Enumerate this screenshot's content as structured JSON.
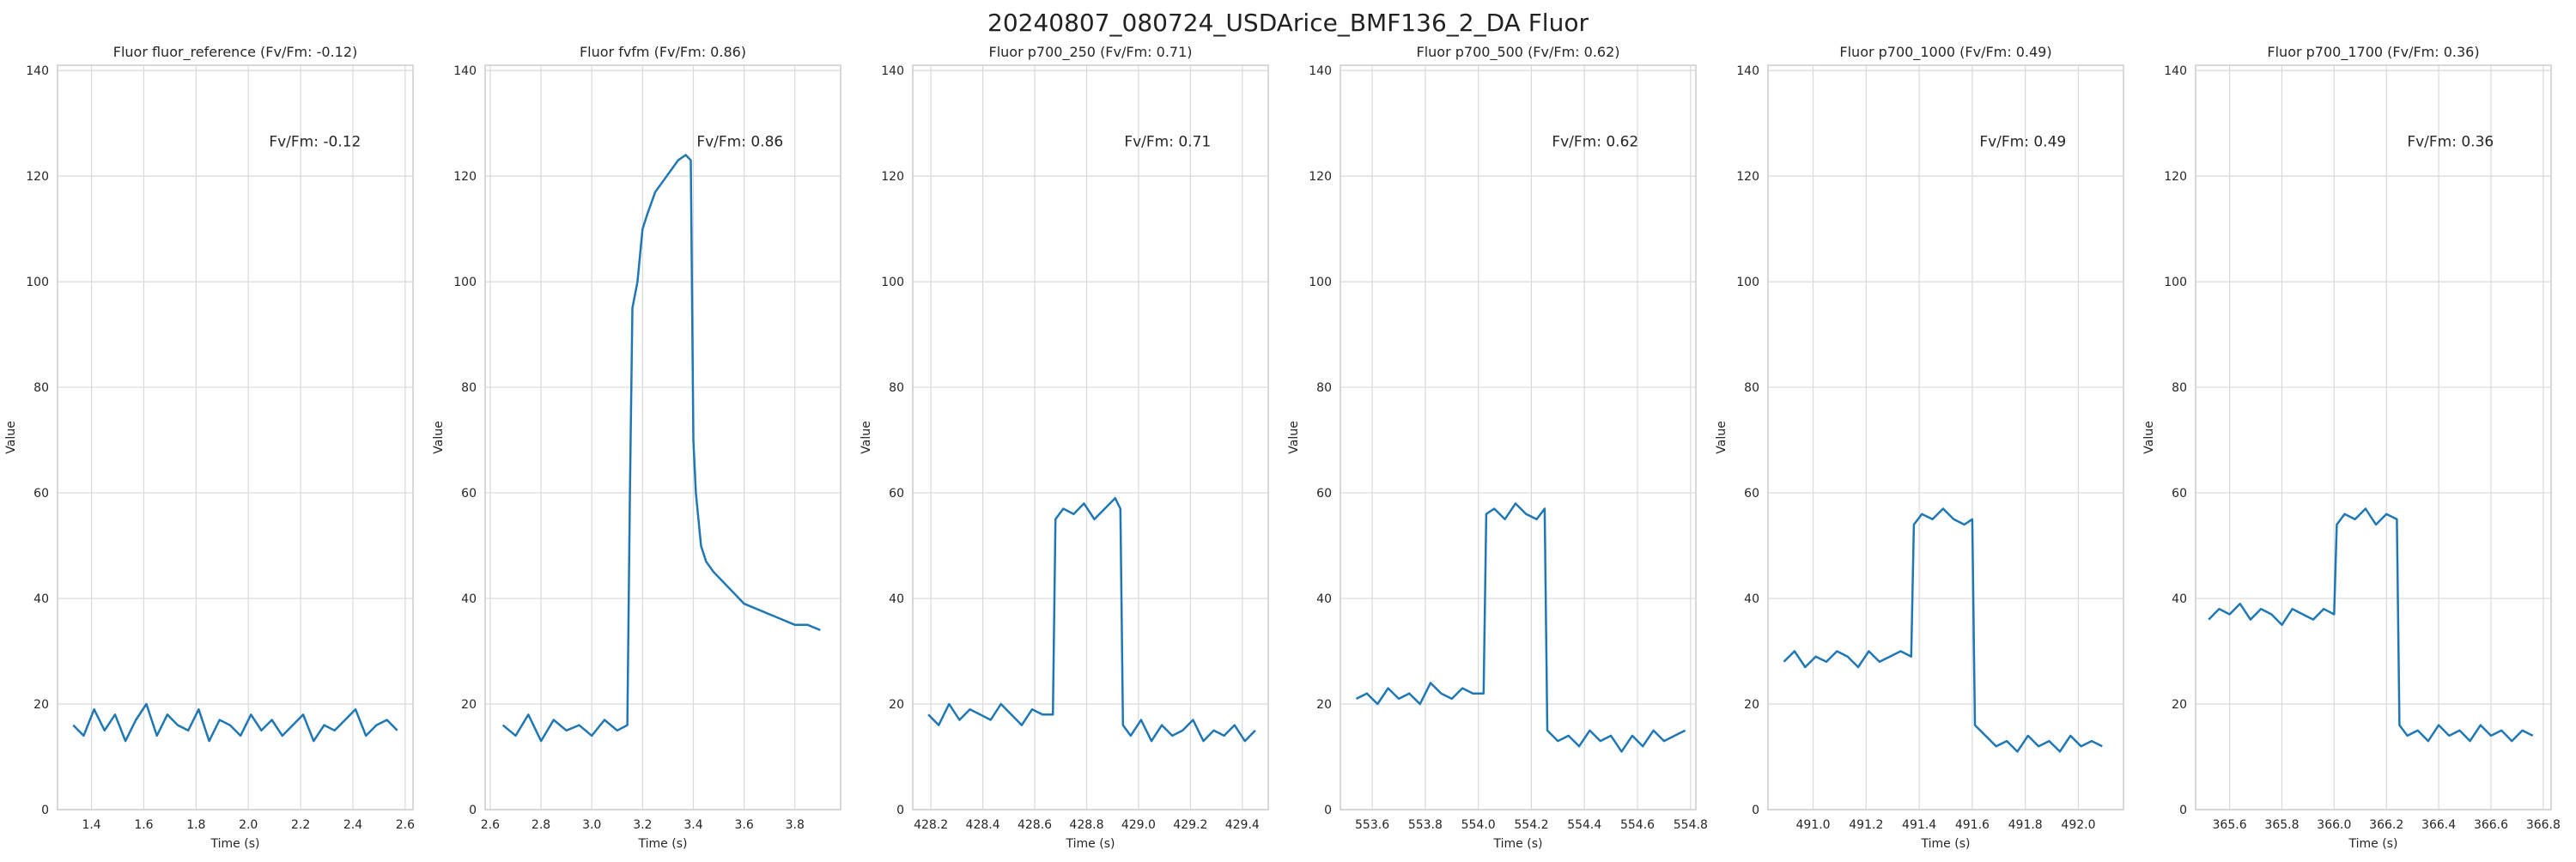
{
  "figure": {
    "title": "20240807_080724_USDArice_BMF136_2_DA Fluor"
  },
  "colors": {
    "line": "#1f77b4",
    "grid": "#d9d9d9",
    "axis": "#cccccc",
    "text": "#262626"
  },
  "chart_data": [
    {
      "type": "line",
      "title": "Fluor fluor_reference (Fv/Fm: -0.12)",
      "annotation": "Fv/Fm: -0.12",
      "xlabel": "Time (s)",
      "ylabel": "Value",
      "xlim": [
        1.27,
        2.63
      ],
      "ylim": [
        0,
        141
      ],
      "xticks": [
        1.4,
        1.6,
        1.8,
        2.0,
        2.2,
        2.4,
        2.6
      ],
      "xtick_labels": [
        "1.4",
        "1.6",
        "1.8",
        "2.0",
        "2.2",
        "2.4",
        "2.6"
      ],
      "yticks": [
        0,
        20,
        40,
        60,
        80,
        100,
        120,
        140
      ],
      "grid": true,
      "x": [
        1.33,
        1.37,
        1.41,
        1.45,
        1.49,
        1.53,
        1.57,
        1.61,
        1.65,
        1.69,
        1.73,
        1.77,
        1.81,
        1.85,
        1.89,
        1.93,
        1.97,
        2.01,
        2.05,
        2.09,
        2.13,
        2.17,
        2.21,
        2.25,
        2.29,
        2.33,
        2.37,
        2.41,
        2.45,
        2.49,
        2.53,
        2.57
      ],
      "y": [
        16,
        14,
        19,
        15,
        18,
        13,
        17,
        20,
        14,
        18,
        16,
        15,
        19,
        13,
        17,
        16,
        14,
        18,
        15,
        17,
        14,
        16,
        18,
        13,
        16,
        15,
        17,
        19,
        14,
        16,
        17,
        15
      ]
    },
    {
      "type": "line",
      "title": "Fluor fvfm (Fv/Fm: 0.86)",
      "annotation": "Fv/Fm: 0.86",
      "xlabel": "Time (s)",
      "ylabel": "Value",
      "xlim": [
        2.58,
        3.98
      ],
      "ylim": [
        0,
        141
      ],
      "xticks": [
        2.6,
        2.8,
        3.0,
        3.2,
        3.4,
        3.6,
        3.8
      ],
      "xtick_labels": [
        "2.6",
        "2.8",
        "3.0",
        "3.2",
        "3.4",
        "3.6",
        "3.8"
      ],
      "yticks": [
        0,
        20,
        40,
        60,
        80,
        100,
        120,
        140
      ],
      "grid": true,
      "x": [
        2.65,
        2.7,
        2.75,
        2.8,
        2.85,
        2.9,
        2.95,
        3.0,
        3.05,
        3.1,
        3.14,
        3.15,
        3.16,
        3.18,
        3.2,
        3.22,
        3.25,
        3.28,
        3.31,
        3.34,
        3.37,
        3.39,
        3.4,
        3.41,
        3.42,
        3.43,
        3.45,
        3.48,
        3.52,
        3.56,
        3.6,
        3.65,
        3.7,
        3.75,
        3.8,
        3.85,
        3.9
      ],
      "y": [
        16,
        14,
        18,
        13,
        17,
        15,
        16,
        14,
        17,
        15,
        16,
        60,
        95,
        100,
        110,
        113,
        117,
        119,
        121,
        123,
        124,
        123,
        70,
        60,
        55,
        50,
        47,
        45,
        43,
        41,
        39,
        38,
        37,
        36,
        35,
        35,
        34
      ]
    },
    {
      "type": "line",
      "title": "Fluor p700_250 (Fv/Fm: 0.71)",
      "annotation": "Fv/Fm: 0.71",
      "xlabel": "Time (s)",
      "ylabel": "Value",
      "xlim": [
        428.13,
        429.5
      ],
      "ylim": [
        0,
        141
      ],
      "xticks": [
        428.2,
        428.4,
        428.6,
        428.8,
        429.0,
        429.2,
        429.4
      ],
      "xtick_labels": [
        "428.2",
        "428.4",
        "428.6",
        "428.8",
        "429.0",
        "429.2",
        "429.4"
      ],
      "yticks": [
        0,
        20,
        40,
        60,
        80,
        100,
        120,
        140
      ],
      "grid": true,
      "x": [
        428.19,
        428.23,
        428.27,
        428.31,
        428.35,
        428.39,
        428.43,
        428.47,
        428.51,
        428.55,
        428.59,
        428.63,
        428.67,
        428.68,
        428.71,
        428.75,
        428.79,
        428.83,
        428.87,
        428.91,
        428.93,
        428.94,
        428.97,
        429.01,
        429.05,
        429.09,
        429.13,
        429.17,
        429.21,
        429.25,
        429.29,
        429.33,
        429.37,
        429.41,
        429.45
      ],
      "y": [
        18,
        16,
        20,
        17,
        19,
        18,
        17,
        20,
        18,
        16,
        19,
        18,
        18,
        55,
        57,
        56,
        58,
        55,
        57,
        59,
        57,
        16,
        14,
        17,
        13,
        16,
        14,
        15,
        17,
        13,
        15,
        14,
        16,
        13,
        15
      ]
    },
    {
      "type": "line",
      "title": "Fluor p700_500 (Fv/Fm: 0.62)",
      "annotation": "Fv/Fm: 0.62",
      "xlabel": "Time (s)",
      "ylabel": "Value",
      "xlim": [
        553.48,
        554.82
      ],
      "ylim": [
        0,
        141
      ],
      "xticks": [
        553.6,
        553.8,
        554.0,
        554.2,
        554.4,
        554.6,
        554.8
      ],
      "xtick_labels": [
        "553.6",
        "553.8",
        "554.0",
        "554.2",
        "554.4",
        "554.6",
        "554.8"
      ],
      "yticks": [
        0,
        20,
        40,
        60,
        80,
        100,
        120,
        140
      ],
      "grid": true,
      "x": [
        553.54,
        553.58,
        553.62,
        553.66,
        553.7,
        553.74,
        553.78,
        553.82,
        553.86,
        553.9,
        553.94,
        553.98,
        554.02,
        554.03,
        554.06,
        554.1,
        554.14,
        554.18,
        554.22,
        554.25,
        554.26,
        554.3,
        554.34,
        554.38,
        554.42,
        554.46,
        554.5,
        554.54,
        554.58,
        554.62,
        554.66,
        554.7,
        554.74,
        554.78
      ],
      "y": [
        21,
        22,
        20,
        23,
        21,
        22,
        20,
        24,
        22,
        21,
        23,
        22,
        22,
        56,
        57,
        55,
        58,
        56,
        55,
        57,
        15,
        13,
        14,
        12,
        15,
        13,
        14,
        11,
        14,
        12,
        15,
        13,
        14,
        15
      ]
    },
    {
      "type": "line",
      "title": "Fluor p700_1000 (Fv/Fm: 0.49)",
      "annotation": "Fv/Fm: 0.49",
      "xlabel": "Time (s)",
      "ylabel": "Value",
      "xlim": [
        490.83,
        492.17
      ],
      "ylim": [
        0,
        141
      ],
      "xticks": [
        491.0,
        491.2,
        491.4,
        491.6,
        491.8,
        492.0
      ],
      "xtick_labels": [
        "491.0",
        "491.2",
        "491.4",
        "491.6",
        "491.8",
        "492.0"
      ],
      "yticks": [
        0,
        20,
        40,
        60,
        80,
        100,
        120,
        140
      ],
      "grid": true,
      "x": [
        490.89,
        490.93,
        490.97,
        491.01,
        491.05,
        491.09,
        491.13,
        491.17,
        491.21,
        491.25,
        491.29,
        491.33,
        491.37,
        491.38,
        491.41,
        491.45,
        491.49,
        491.53,
        491.57,
        491.6,
        491.61,
        491.65,
        491.69,
        491.73,
        491.77,
        491.81,
        491.85,
        491.89,
        491.93,
        491.97,
        492.01,
        492.05,
        492.09
      ],
      "y": [
        28,
        30,
        27,
        29,
        28,
        30,
        29,
        27,
        30,
        28,
        29,
        30,
        29,
        54,
        56,
        55,
        57,
        55,
        54,
        55,
        16,
        14,
        12,
        13,
        11,
        14,
        12,
        13,
        11,
        14,
        12,
        13,
        12
      ]
    },
    {
      "type": "line",
      "title": "Fluor p700_1700 (Fv/Fm: 0.36)",
      "annotation": "Fv/Fm: 0.36",
      "xlabel": "Time (s)",
      "ylabel": "Value",
      "xlim": [
        365.47,
        366.83
      ],
      "ylim": [
        0,
        141
      ],
      "xticks": [
        365.6,
        365.8,
        366.0,
        366.2,
        366.4,
        366.6,
        366.8
      ],
      "xtick_labels": [
        "365.6",
        "365.8",
        "366.0",
        "366.2",
        "366.4",
        "366.6",
        "366.8"
      ],
      "yticks": [
        0,
        20,
        40,
        60,
        80,
        100,
        120,
        140
      ],
      "grid": true,
      "x": [
        365.52,
        365.56,
        365.6,
        365.64,
        365.68,
        365.72,
        365.76,
        365.8,
        365.84,
        365.88,
        365.92,
        365.96,
        366.0,
        366.01,
        366.04,
        366.08,
        366.12,
        366.16,
        366.2,
        366.24,
        366.25,
        366.28,
        366.32,
        366.36,
        366.4,
        366.44,
        366.48,
        366.52,
        366.56,
        366.6,
        366.64,
        366.68,
        366.72,
        366.76
      ],
      "y": [
        36,
        38,
        37,
        39,
        36,
        38,
        37,
        35,
        38,
        37,
        36,
        38,
        37,
        54,
        56,
        55,
        57,
        54,
        56,
        55,
        16,
        14,
        15,
        13,
        16,
        14,
        15,
        13,
        16,
        14,
        15,
        13,
        15,
        14
      ]
    }
  ]
}
